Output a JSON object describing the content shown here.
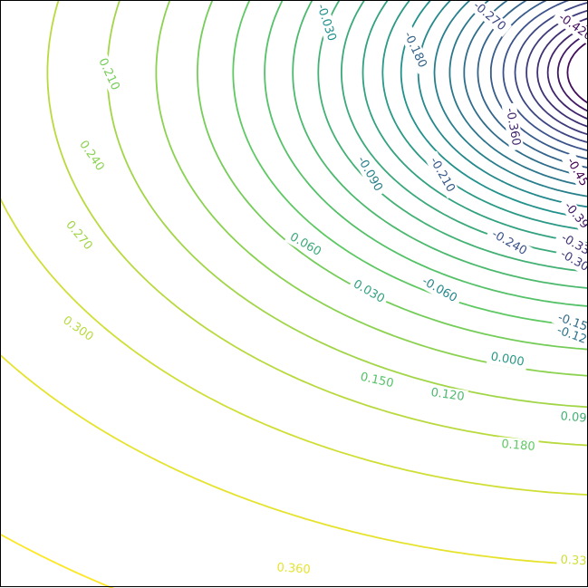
{
  "chart_data": {
    "type": "contour",
    "title": "",
    "xlabel": "",
    "ylabel": "",
    "frame": true,
    "level_step": 0.03,
    "level_range": [
      -0.45,
      0.39
    ],
    "colormap": "viridis",
    "colormap_stops": [
      "#440154",
      "#3b528b",
      "#21918c",
      "#5ec962",
      "#fde725"
    ],
    "visible_labels": [
      "-0.030",
      "-0.180",
      "-0.270",
      "-0.420",
      "0.210",
      "0.240",
      "0.270",
      "0.300",
      "-0.360",
      "-0.090",
      "-0.210",
      "-0.240",
      "-0.45",
      "-0.39",
      "-0.33",
      "-0.30",
      "0.060",
      "0.030",
      "-0.060",
      "-0.15",
      "-0.12",
      "0.000",
      "0.150",
      "0.120",
      "0.09",
      "0.180",
      "0.360",
      "0.33"
    ]
  }
}
